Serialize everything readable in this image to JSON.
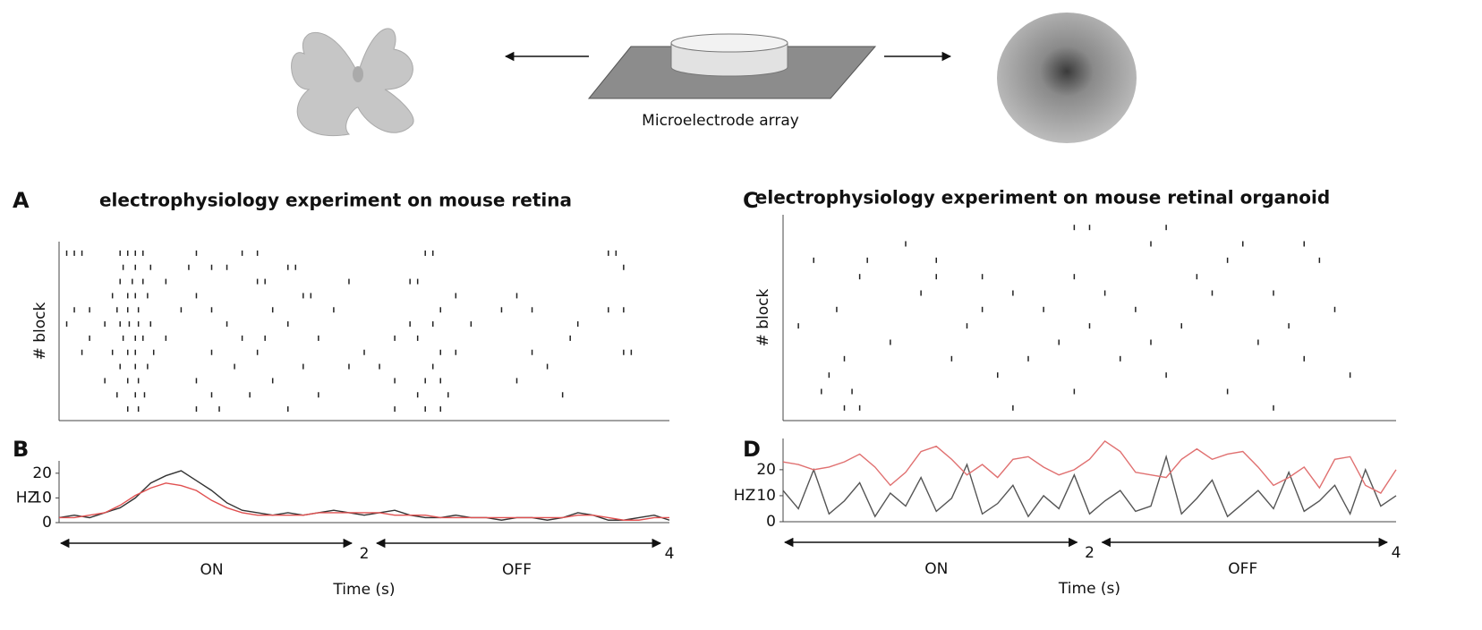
{
  "diagram": {
    "label": "Microelectrode array"
  },
  "chart_data": [
    {
      "type": "raster",
      "panel_label": "A",
      "title": "electrophysiology experiment on mouse retina",
      "y_label": "# block",
      "xlim": [
        0,
        4
      ],
      "rows": [
        [
          0.05,
          0.1,
          0.15,
          0.4,
          0.45,
          0.5,
          0.55,
          0.9,
          1.2,
          1.3,
          2.4,
          2.45,
          3.6,
          3.65
        ],
        [
          0.42,
          0.5,
          0.6,
          0.85,
          1.0,
          1.1,
          1.5,
          1.55,
          3.7
        ],
        [
          0.4,
          0.48,
          0.55,
          0.7,
          1.3,
          1.35,
          1.9,
          2.3,
          2.35
        ],
        [
          0.35,
          0.45,
          0.5,
          0.58,
          0.9,
          1.6,
          1.65,
          2.6,
          3.0
        ],
        [
          0.1,
          0.2,
          0.38,
          0.45,
          0.52,
          0.8,
          1.0,
          1.4,
          1.8,
          2.5,
          2.9,
          3.1,
          3.6,
          3.7
        ],
        [
          0.05,
          0.3,
          0.4,
          0.46,
          0.52,
          0.6,
          1.1,
          1.5,
          2.3,
          2.45,
          2.7,
          3.4
        ],
        [
          0.2,
          0.42,
          0.5,
          0.55,
          0.7,
          1.2,
          1.35,
          1.7,
          2.2,
          2.35,
          3.35
        ],
        [
          0.15,
          0.35,
          0.45,
          0.5,
          0.62,
          1.0,
          1.3,
          2.0,
          2.5,
          2.6,
          3.1,
          3.7,
          3.75
        ],
        [
          0.4,
          0.5,
          0.58,
          1.15,
          1.6,
          1.9,
          2.1,
          2.45,
          3.2
        ],
        [
          0.3,
          0.45,
          0.52,
          0.9,
          1.4,
          2.2,
          2.4,
          2.5,
          3.0
        ],
        [
          0.38,
          0.5,
          0.56,
          1.0,
          1.25,
          1.7,
          2.35,
          2.55,
          3.3
        ],
        [
          0.45,
          0.52,
          0.9,
          1.05,
          1.5,
          2.2,
          2.4,
          2.5
        ]
      ]
    },
    {
      "type": "line",
      "panel_label": "B",
      "y_label": "HZ",
      "x_label": "Time (s)",
      "annotations": [
        "ON",
        "OFF"
      ],
      "xlim": [
        0,
        4
      ],
      "xticks": [
        2,
        4
      ],
      "ylim": [
        0,
        25
      ],
      "yticks": [
        0,
        10,
        20
      ],
      "x": [
        0,
        0.1,
        0.2,
        0.3,
        0.4,
        0.5,
        0.6,
        0.7,
        0.8,
        0.9,
        1,
        1.1,
        1.2,
        1.3,
        1.4,
        1.5,
        1.6,
        1.7,
        1.8,
        1.9,
        2,
        2.1,
        2.2,
        2.3,
        2.4,
        2.5,
        2.6,
        2.7,
        2.8,
        2.9,
        3,
        3.1,
        3.2,
        3.3,
        3.4,
        3.5,
        3.6,
        3.7,
        3.8,
        3.9,
        4
      ],
      "series": [
        {
          "color": "#333333",
          "values": [
            2,
            3,
            2,
            4,
            6,
            10,
            16,
            19,
            21,
            17,
            13,
            8,
            5,
            4,
            3,
            4,
            3,
            4,
            5,
            4,
            3,
            4,
            5,
            3,
            2,
            2,
            3,
            2,
            2,
            1,
            2,
            2,
            1,
            2,
            4,
            3,
            1,
            1,
            2,
            3,
            1
          ]
        },
        {
          "color": "#e05050",
          "values": [
            2,
            2,
            3,
            4,
            7,
            11,
            14,
            16,
            15,
            13,
            9,
            6,
            4,
            3,
            3,
            3,
            3,
            4,
            4,
            4,
            4,
            4,
            3,
            3,
            3,
            2,
            2,
            2,
            2,
            2,
            2,
            2,
            2,
            2,
            3,
            3,
            2,
            1,
            1,
            2,
            2
          ]
        }
      ]
    },
    {
      "type": "raster",
      "panel_label": "C",
      "title": "electrophysiology experiment on mouse retinal organoid",
      "y_label": "# block",
      "xlim": [
        0,
        4
      ],
      "rows": [
        [
          1.9,
          2.0,
          2.5
        ],
        [
          0.8,
          2.4,
          3.0,
          3.4
        ],
        [
          0.2,
          0.55,
          1.0,
          2.9,
          3.5
        ],
        [
          0.5,
          1.0,
          1.3,
          1.9,
          2.7
        ],
        [
          0.9,
          1.5,
          2.1,
          2.8,
          3.2
        ],
        [
          0.35,
          1.3,
          1.7,
          2.3,
          3.6
        ],
        [
          0.1,
          1.2,
          2.0,
          2.6,
          3.3
        ],
        [
          0.7,
          1.8,
          2.4,
          3.1
        ],
        [
          0.4,
          1.1,
          1.6,
          2.2,
          3.4
        ],
        [
          0.3,
          1.4,
          2.5,
          3.7
        ],
        [
          0.25,
          0.45,
          1.9,
          2.9
        ],
        [
          0.4,
          0.5,
          1.5,
          3.2
        ]
      ]
    },
    {
      "type": "line",
      "panel_label": "D",
      "y_label": "HZ",
      "x_label": "Time (s)",
      "annotations": [
        "ON",
        "OFF"
      ],
      "xlim": [
        0,
        4
      ],
      "xticks": [
        2,
        4
      ],
      "ylim": [
        0,
        32
      ],
      "yticks": [
        0,
        10,
        20
      ],
      "x": [
        0,
        0.1,
        0.2,
        0.3,
        0.4,
        0.5,
        0.6,
        0.7,
        0.8,
        0.9,
        1,
        1.1,
        1.2,
        1.3,
        1.4,
        1.5,
        1.6,
        1.7,
        1.8,
        1.9,
        2,
        2.1,
        2.2,
        2.3,
        2.4,
        2.5,
        2.6,
        2.7,
        2.8,
        2.9,
        3,
        3.1,
        3.2,
        3.3,
        3.4,
        3.5,
        3.6,
        3.7,
        3.8,
        3.9,
        4
      ],
      "series": [
        {
          "color": "#555555",
          "values": [
            12,
            5,
            20,
            3,
            8,
            15,
            2,
            11,
            6,
            17,
            4,
            9,
            22,
            3,
            7,
            14,
            2,
            10,
            5,
            18,
            3,
            8,
            12,
            4,
            6,
            25,
            3,
            9,
            16,
            2,
            7,
            12,
            5,
            19,
            4,
            8,
            14,
            3,
            20,
            6,
            10
          ]
        },
        {
          "color": "#e07070",
          "values": [
            23,
            22,
            20,
            21,
            23,
            26,
            21,
            14,
            19,
            27,
            29,
            24,
            18,
            22,
            17,
            24,
            25,
            21,
            18,
            20,
            24,
            31,
            27,
            19,
            18,
            17,
            24,
            28,
            24,
            26,
            27,
            21,
            14,
            17,
            21,
            13,
            24,
            25,
            14,
            11,
            20
          ]
        }
      ]
    }
  ]
}
